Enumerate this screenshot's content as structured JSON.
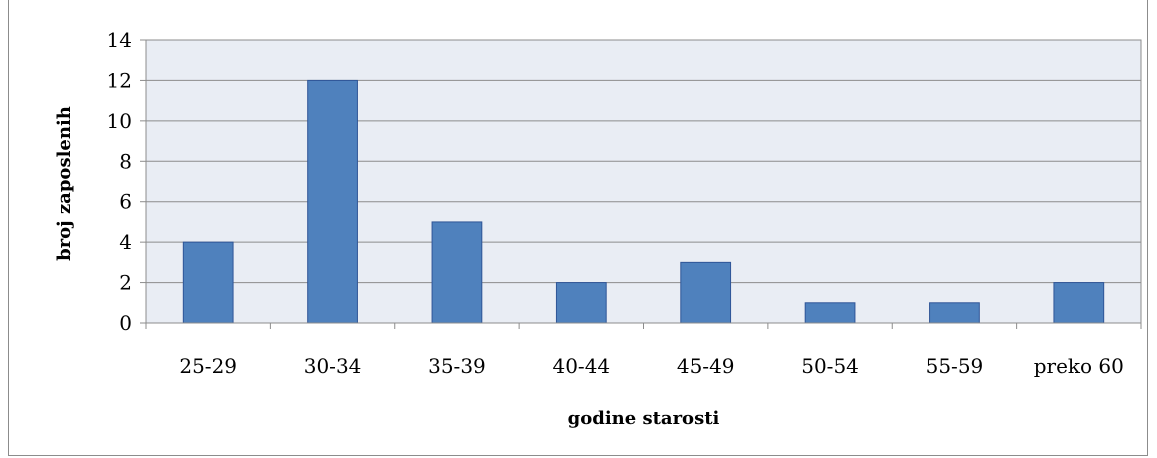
{
  "chart_data": {
    "type": "bar",
    "title": "",
    "categories": [
      "25-29",
      "30-34",
      "35-39",
      "40-44",
      "45-49",
      "50-54",
      "55-59",
      "preko 60"
    ],
    "values": [
      4,
      12,
      5,
      2,
      3,
      1,
      1,
      2
    ],
    "xlabel": "godine starosti",
    "ylabel": "broj zaposlenih",
    "ylim": [
      0,
      14
    ],
    "yticks": [
      0,
      2,
      4,
      6,
      8,
      10,
      12,
      14
    ],
    "grid": true,
    "legend": "none",
    "colors": {
      "bar_fill": "#4f81bd",
      "bar_stroke": "#2f5597",
      "plot_background": "#e9edf4",
      "gridline": "#8c8c8c"
    }
  }
}
